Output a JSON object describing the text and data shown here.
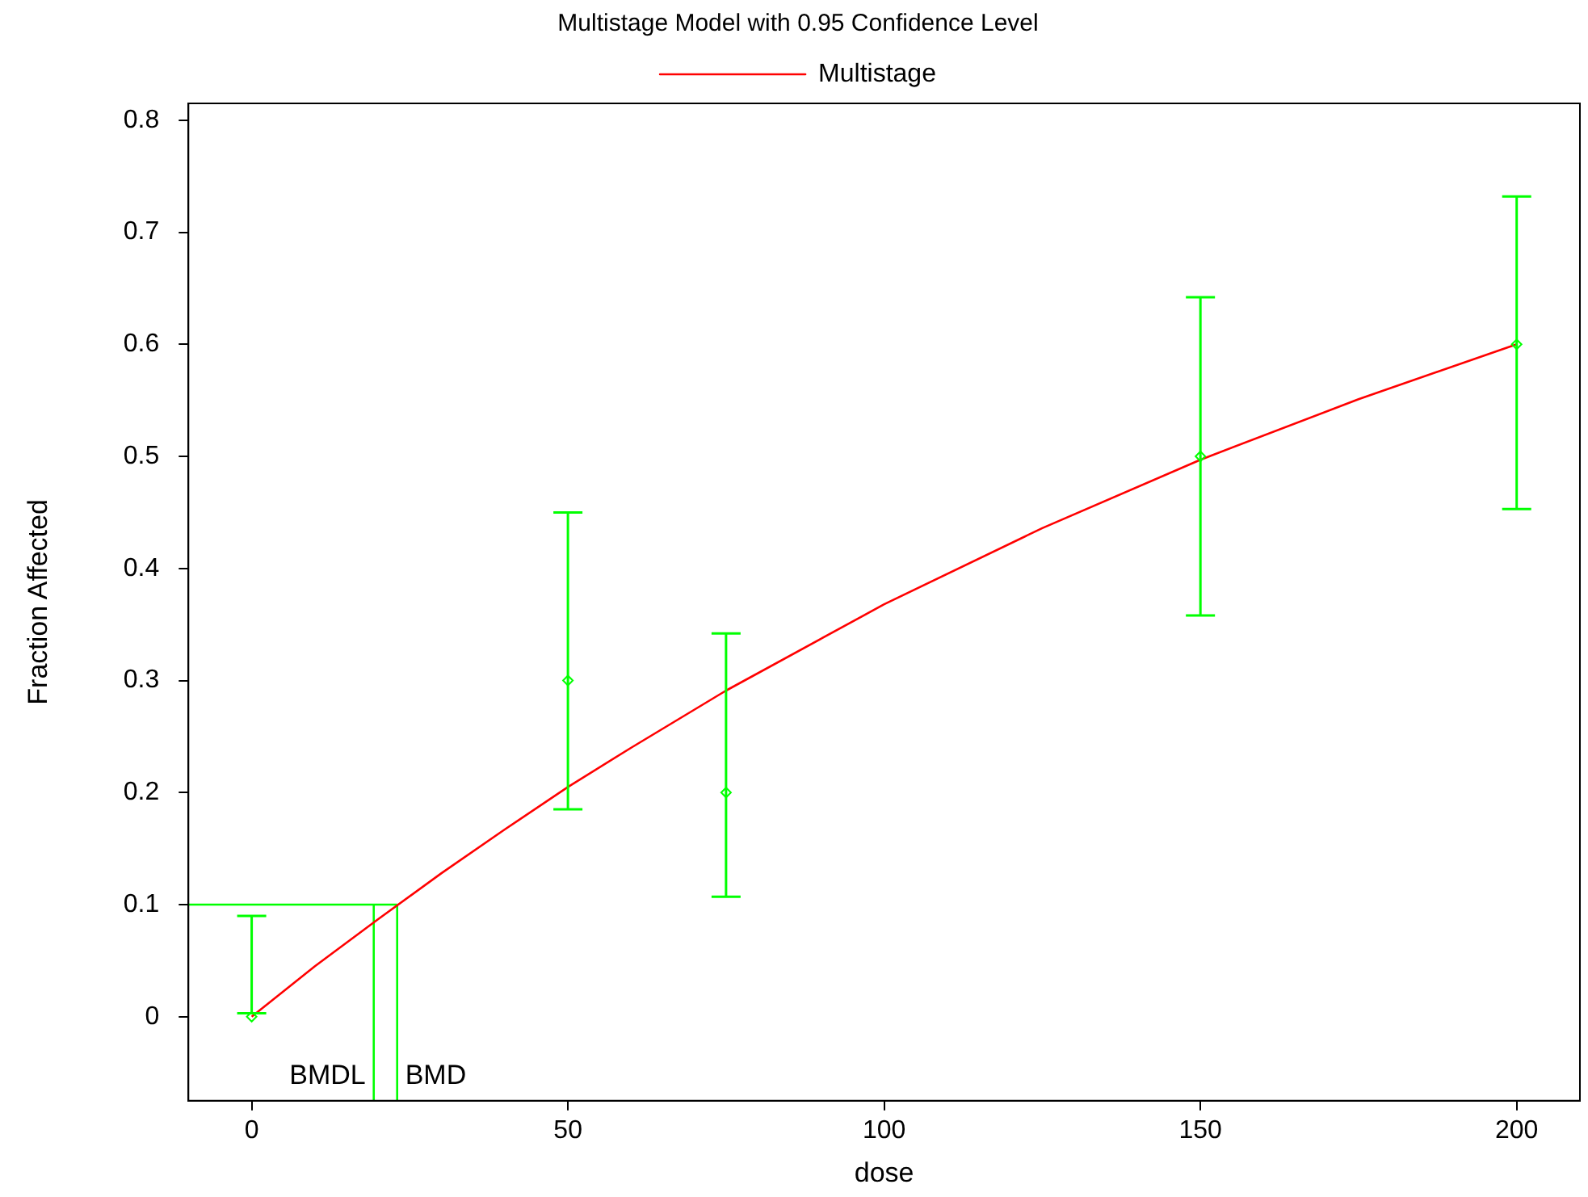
{
  "chart_data": {
    "type": "scatter",
    "title": "Multistage Model with 0.95 Confidence Level",
    "xlabel": "dose",
    "ylabel": "Fraction Affected",
    "xlim": [
      -10,
      210
    ],
    "xticks": [
      0,
      50,
      100,
      150,
      200
    ],
    "ylim": [
      -0.075,
      0.815
    ],
    "yticks": [
      0,
      0.1,
      0.2,
      0.3,
      0.4,
      0.5,
      0.6,
      0.7,
      0.8
    ],
    "grid": false,
    "legend": "top",
    "marker": "diamond",
    "annotations": [
      {
        "text": "BMDL",
        "x": 19.3,
        "y": -0.053
      },
      {
        "text": "BMD",
        "x": 23,
        "y": -0.053
      }
    ],
    "series": [
      {
        "type": "scatter",
        "color": "#00ff00",
        "x": [
          0,
          50,
          75,
          150,
          200
        ],
        "values": [
          0,
          0.3,
          0.2,
          0.5,
          0.6
        ],
        "errors": [
          [
            0.003,
            0.09
          ],
          [
            0.185,
            0.45
          ],
          [
            0.107,
            0.342
          ],
          [
            0.358,
            0.642
          ],
          [
            0.453,
            0.732
          ]
        ]
      },
      {
        "type": "line",
        "name": "Multistage",
        "color": "#ff0000",
        "marker": "none",
        "x": [
          0,
          10,
          20,
          30,
          40,
          50,
          60,
          75,
          100,
          125,
          150,
          175,
          200
        ],
        "values": [
          0,
          0.045,
          0.087,
          0.128,
          0.167,
          0.205,
          0.24,
          0.291,
          0.368,
          0.436,
          0.497,
          0.551,
          0.6
        ]
      },
      {
        "type": "line",
        "color": "#00ff00",
        "marker": "none",
        "x": [
          -10,
          23
        ],
        "values": [
          0.1,
          0.1
        ]
      },
      {
        "type": "line",
        "color": "#00ff00",
        "marker": "none",
        "x": [
          19.3,
          19.3
        ],
        "values": [
          -0.075,
          0.1
        ]
      },
      {
        "type": "line",
        "color": "#00ff00",
        "marker": "none",
        "x": [
          23,
          23
        ],
        "values": [
          -0.075,
          0.1
        ]
      }
    ]
  }
}
